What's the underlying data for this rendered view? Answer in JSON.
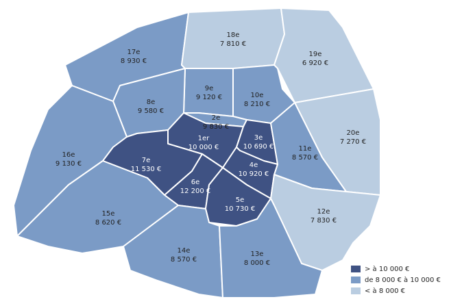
{
  "districts": [
    {
      "name": "17e",
      "price": "8 930 €",
      "color": "#7b9bc6"
    },
    {
      "name": "18e",
      "price": "7 810 €",
      "color": "#bacde1"
    },
    {
      "name": "19e",
      "price": "6 920 €",
      "color": "#bacde1"
    },
    {
      "name": "9e",
      "price": "9 120 €",
      "color": "#7b9bc6"
    },
    {
      "name": "10e",
      "price": "8 210 €",
      "color": "#7b9bc6"
    },
    {
      "name": "8e",
      "price": "9 580 €",
      "color": "#7b9bc6"
    },
    {
      "name": "2e",
      "price": "9 830 €",
      "color": "#7b9bc6"
    },
    {
      "name": "20e",
      "price": "7 270 €",
      "color": "#bacde1"
    },
    {
      "name": "1er",
      "price": "10 000 €",
      "color": "#3f5283"
    },
    {
      "name": "3e",
      "price": "10 690 €",
      "color": "#3f5283"
    },
    {
      "name": "11e",
      "price": "8 570 €",
      "color": "#7b9bc6"
    },
    {
      "name": "16e",
      "price": "9 130 €",
      "color": "#7b9bc6"
    },
    {
      "name": "7e",
      "price": "11 530 €",
      "color": "#3f5283"
    },
    {
      "name": "4e",
      "price": "10 920 €",
      "color": "#3f5283"
    },
    {
      "name": "6e",
      "price": "12 200 €",
      "color": "#3f5283"
    },
    {
      "name": "5e",
      "price": "10 730 €",
      "color": "#3f5283"
    },
    {
      "name": "12e",
      "price": "7 830 €",
      "color": "#bacde1"
    },
    {
      "name": "15e",
      "price": "8 620 €",
      "color": "#7b9bc6"
    },
    {
      "name": "14e",
      "price": "8 570 €",
      "color": "#7b9bc6"
    },
    {
      "name": "13e",
      "price": "8 000 €",
      "color": "#7b9bc6"
    }
  ],
  "legend": [
    {
      "label": "> à 10 000 €",
      "color": "#3f5283"
    },
    {
      "label": "de 8 000 € à 10 000 €",
      "color": "#7b9bc6"
    },
    {
      "label": "< à 8 000 €",
      "color": "#bacde1"
    }
  ]
}
